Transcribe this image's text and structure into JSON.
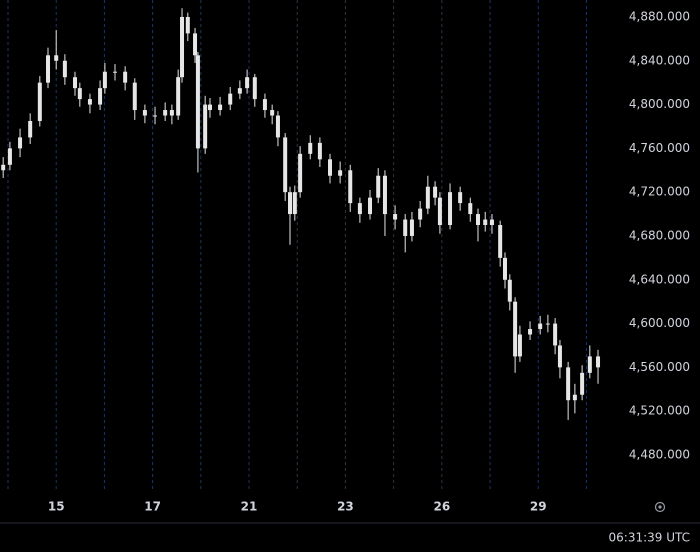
{
  "chart_data": {
    "type": "candlestick",
    "color": "#e6e6e6",
    "x": [
      -0.1,
      0.04,
      0.25,
      0.46,
      0.66,
      0.83,
      1.0,
      1.18,
      1.39,
      1.49,
      1.7,
      1.91,
      2.01,
      2.22,
      2.43,
      2.63,
      2.84,
      3.05,
      3.26,
      3.4,
      3.53,
      3.61,
      3.73,
      3.88,
      3.94,
      4.09,
      4.19,
      4.4,
      4.61,
      4.81,
      4.96,
      5.12,
      5.33,
      5.48,
      5.6,
      5.75,
      5.85,
      5.95,
      6.06,
      6.27,
      6.47,
      6.68,
      6.89,
      7.1,
      7.3,
      7.51,
      7.68,
      7.82,
      8.03,
      8.24,
      8.38,
      8.55,
      8.71,
      8.86,
      8.96,
      9.17,
      9.38,
      9.59,
      9.75,
      9.9,
      10.04,
      10.21,
      10.31,
      10.41,
      10.52,
      10.62,
      10.83,
      11.04,
      11.2,
      11.35,
      11.45,
      11.62,
      11.76,
      11.91,
      12.07,
      12.24
    ],
    "open": [
      4740,
      4745,
      4760,
      4770,
      4785,
      4820,
      4845,
      4840,
      4825,
      4815,
      4805,
      4800,
      4815,
      4830,
      4830,
      4820,
      4795,
      4790,
      4790,
      4795,
      4790,
      4825,
      4880,
      4865,
      4845,
      4760,
      4800,
      4795,
      4800,
      4810,
      4815,
      4825,
      4805,
      4795,
      4790,
      4770,
      4720,
      4700,
      4720,
      4755,
      4765,
      4750,
      4735,
      4740,
      4710,
      4700,
      4715,
      4735,
      4700,
      4695,
      4680,
      4695,
      4705,
      4725,
      4715,
      4690,
      4720,
      4710,
      4700,
      4690,
      4695,
      4690,
      4660,
      4640,
      4620,
      4570,
      4590,
      4595,
      4600,
      4600,
      4580,
      4560,
      4530,
      4535,
      4555,
      4570
    ],
    "high": [
      4752,
      4766,
      4778,
      4792,
      4826,
      4852,
      4868,
      4846,
      4830,
      4820,
      4810,
      4822,
      4838,
      4837,
      4835,
      4824,
      4800,
      4798,
      4802,
      4800,
      4832,
      4888,
      4884,
      4870,
      4848,
      4808,
      4806,
      4807,
      4816,
      4822,
      4832,
      4828,
      4810,
      4800,
      4794,
      4774,
      4725,
      4726,
      4762,
      4772,
      4770,
      4755,
      4748,
      4745,
      4715,
      4722,
      4742,
      4740,
      4708,
      4700,
      4702,
      4712,
      4735,
      4730,
      4720,
      4728,
      4725,
      4715,
      4705,
      4702,
      4700,
      4694,
      4665,
      4645,
      4624,
      4598,
      4602,
      4607,
      4608,
      4605,
      4585,
      4565,
      4545,
      4562,
      4580,
      4576
    ],
    "low": [
      4733,
      4740,
      4752,
      4764,
      4780,
      4815,
      4832,
      4818,
      4808,
      4798,
      4792,
      4795,
      4810,
      4822,
      4813,
      4786,
      4783,
      4782,
      4785,
      4782,
      4786,
      4820,
      4858,
      4838,
      4738,
      4755,
      4788,
      4790,
      4795,
      4805,
      4810,
      4798,
      4788,
      4782,
      4762,
      4712,
      4672,
      4694,
      4715,
      4750,
      4743,
      4728,
      4728,
      4702,
      4692,
      4695,
      4710,
      4680,
      4686,
      4665,
      4675,
      4688,
      4700,
      4708,
      4682,
      4686,
      4703,
      4693,
      4675,
      4684,
      4682,
      4652,
      4632,
      4612,
      4555,
      4565,
      4585,
      4590,
      4592,
      4572,
      4550,
      4512,
      4518,
      4530,
      4550,
      4545
    ],
    "close": [
      4745,
      4760,
      4770,
      4785,
      4820,
      4845,
      4840,
      4825,
      4815,
      4805,
      4800,
      4815,
      4830,
      4830,
      4820,
      4795,
      4790,
      4790,
      4795,
      4790,
      4825,
      4880,
      4865,
      4845,
      4760,
      4800,
      4795,
      4800,
      4810,
      4815,
      4825,
      4805,
      4795,
      4790,
      4770,
      4720,
      4700,
      4720,
      4755,
      4765,
      4750,
      4735,
      4740,
      4710,
      4700,
      4715,
      4735,
      4700,
      4695,
      4680,
      4695,
      4705,
      4725,
      4715,
      4690,
      4720,
      4710,
      4700,
      4690,
      4695,
      4690,
      4660,
      4640,
      4620,
      4570,
      4590,
      4595,
      4600,
      4600,
      4580,
      4560,
      4530,
      4535,
      4555,
      4570,
      4560
    ],
    "xlim": [
      -0.166,
      12.53
    ],
    "xticks": [
      {
        "value": 0,
        "label": null
      },
      {
        "value": 1,
        "label": "15"
      },
      {
        "value": 2,
        "label": null
      },
      {
        "value": 3,
        "label": "17"
      },
      {
        "value": 4,
        "label": null
      },
      {
        "value": 5,
        "label": "21"
      },
      {
        "value": 6,
        "label": null
      },
      {
        "value": 7,
        "label": "23"
      },
      {
        "value": 8,
        "label": null
      },
      {
        "value": 9,
        "label": "26"
      },
      {
        "value": 10,
        "label": null
      },
      {
        "value": 11,
        "label": "29"
      },
      {
        "value": 12,
        "label": null
      }
    ],
    "ylim": [
      4448,
      4895.5
    ],
    "yticks": [
      {
        "value": 4480,
        "label": "4,480.000"
      },
      {
        "value": 4520,
        "label": "4,520.000"
      },
      {
        "value": 4560,
        "label": "4,560.000"
      },
      {
        "value": 4600,
        "label": "4,600.000"
      },
      {
        "value": 4640,
        "label": "4,640.000"
      },
      {
        "value": 4680,
        "label": "4,680.000"
      },
      {
        "value": 4720,
        "label": "4,720.000"
      },
      {
        "value": 4760,
        "label": "4,760.000"
      },
      {
        "value": 4800,
        "label": "4,800.000"
      },
      {
        "value": 4840,
        "label": "4,840.000"
      },
      {
        "value": 4880,
        "label": "4,880.000"
      }
    ],
    "grid": true,
    "grid_color": "#24345a",
    "time_label": "06:31:39 UTC"
  }
}
